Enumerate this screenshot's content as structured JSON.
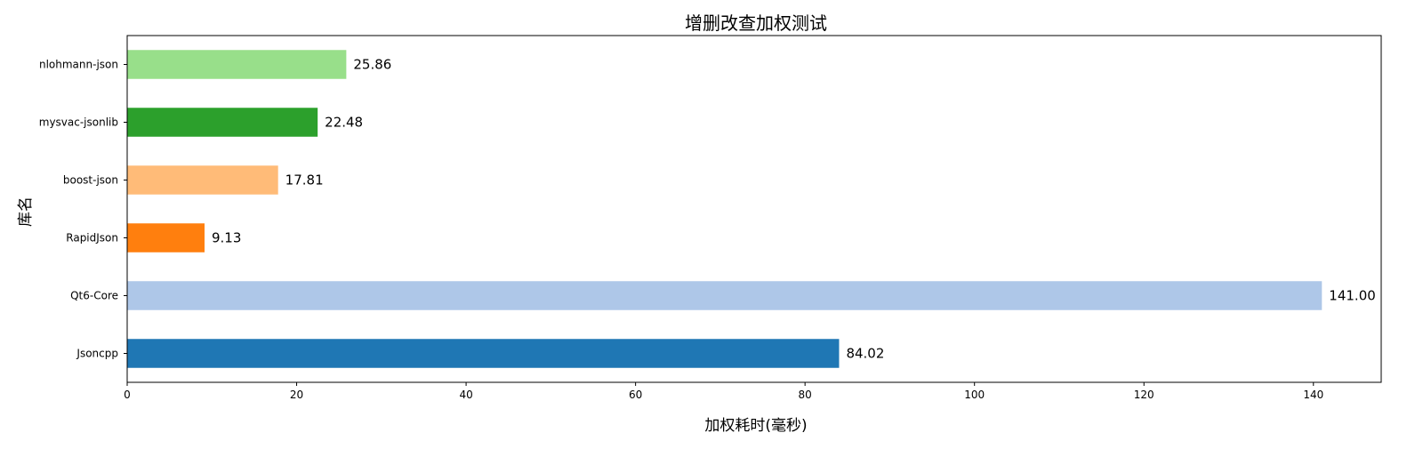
{
  "chart_data": {
    "type": "bar",
    "orientation": "horizontal",
    "title": "增删改查加权测试",
    "xlabel": "加权耗时(毫秒)",
    "ylabel": "库名",
    "xlim": [
      0,
      148
    ],
    "xticks": [
      0,
      20,
      40,
      60,
      80,
      100,
      120,
      140
    ],
    "categories": [
      "Jsoncpp",
      "Qt6-Core",
      "RapidJson",
      "boost-json",
      "mysvac-jsonlib",
      "nlohmann-json"
    ],
    "values": [
      84.02,
      141.0,
      9.13,
      17.81,
      22.48,
      25.86
    ],
    "value_labels": [
      "84.02",
      "141.00",
      "9.13",
      "17.81",
      "22.48",
      "25.86"
    ],
    "colors": [
      "#1f77b4",
      "#aec7e8",
      "#ff7f0e",
      "#ffbb78",
      "#2ca02c",
      "#98df8a"
    ],
    "grid": false,
    "legend": "none"
  }
}
